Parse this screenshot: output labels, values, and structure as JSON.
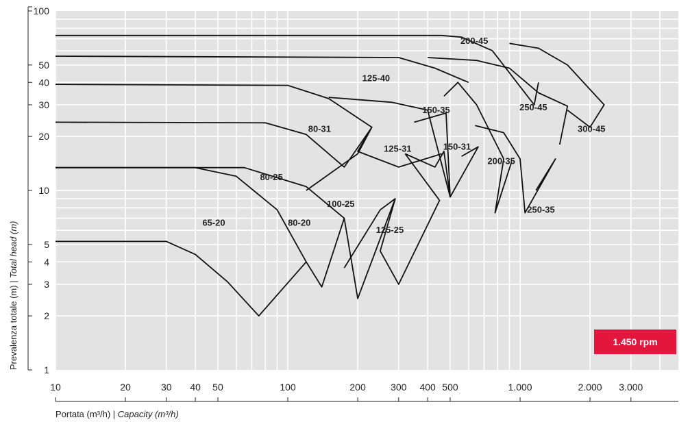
{
  "chart_data": {
    "type": "line",
    "title": "",
    "xlabel": "Portata (m³/h) | ",
    "xlabel_italic": "Capacity (m³/h)",
    "ylabel": "Prevalenza totale (m) | ",
    "ylabel_italic": "Total head (m)",
    "x_scale": "log",
    "y_scale": "log",
    "xlim": [
      10,
      4800
    ],
    "ylim": [
      1,
      100
    ],
    "grid": true,
    "x_ticks": [
      {
        "v": 10,
        "label": "10"
      },
      {
        "v": 20,
        "label": "20"
      },
      {
        "v": 30,
        "label": "30"
      },
      {
        "v": 40,
        "label": "40"
      },
      {
        "v": 50,
        "label": "50"
      },
      {
        "v": 100,
        "label": "100"
      },
      {
        "v": 200,
        "label": "200"
      },
      {
        "v": 300,
        "label": "300"
      },
      {
        "v": 400,
        "label": "400"
      },
      {
        "v": 500,
        "label": "500"
      },
      {
        "v": 1000,
        "label": "1.000"
      },
      {
        "v": 2000,
        "label": "2.000"
      },
      {
        "v": 3000,
        "label": "3.000"
      }
    ],
    "y_ticks": [
      {
        "v": 1,
        "label": "1"
      },
      {
        "v": 2,
        "label": "2"
      },
      {
        "v": 3,
        "label": "3"
      },
      {
        "v": 4,
        "label": "4"
      },
      {
        "v": 5,
        "label": "5"
      },
      {
        "v": 10,
        "label": "10"
      },
      {
        "v": 20,
        "label": "20"
      },
      {
        "v": 30,
        "label": "30"
      },
      {
        "v": 40,
        "label": "40"
      },
      {
        "v": 50,
        "label": "50"
      },
      {
        "v": 100,
        "label": "100"
      }
    ],
    "speed_badge": "1.450 rpm",
    "badge_color": "#e3173e",
    "curves": [
      {
        "label": "65-20",
        "label_at": [
          48,
          6.6
        ],
        "points": [
          [
            10,
            5.2
          ],
          [
            30,
            5.2
          ],
          [
            40,
            4.4
          ],
          [
            55,
            3.1
          ],
          [
            75,
            2.0
          ],
          [
            120,
            4.0
          ]
        ]
      },
      {
        "label": "80-20",
        "label_at": [
          112,
          6.6
        ],
        "points": [
          [
            10,
            13.4
          ],
          [
            40,
            13.4
          ],
          [
            60,
            12.0
          ],
          [
            90,
            7.8
          ],
          [
            120,
            4.0
          ],
          [
            140,
            2.9
          ],
          [
            175,
            7.0
          ]
        ]
      },
      {
        "label": "80-25",
        "label_at": [
          85,
          11.8
        ],
        "points": [
          [
            10,
            24.0
          ],
          [
            80,
            23.8
          ],
          [
            120,
            20.5
          ],
          [
            175,
            13.5
          ],
          [
            230,
            22.5
          ]
        ]
      },
      {
        "label": "80-31",
        "label_at": [
          137,
          22.0
        ],
        "points": [
          [
            10,
            39.0
          ],
          [
            100,
            38.5
          ],
          [
            150,
            32.5
          ],
          [
            230,
            22.5
          ]
        ]
      },
      {
        "label": "100-25",
        "label_at": [
          169,
          8.4
        ],
        "points": [
          [
            10,
            13.4
          ],
          [
            65,
            13.4
          ],
          [
            120,
            10.5
          ],
          [
            175,
            7.0
          ],
          [
            200,
            2.5
          ],
          [
            290,
            9.0
          ]
        ]
      },
      {
        "label": "125-25",
        "label_at": [
          275,
          6.0
        ],
        "points": [
          [
            175,
            3.7
          ],
          [
            250,
            7.8
          ],
          [
            290,
            9.0
          ],
          [
            250,
            4.6
          ],
          [
            300,
            3.0
          ],
          [
            450,
            8.8
          ],
          [
            320,
            16.0
          ]
        ]
      },
      {
        "label": "125-31",
        "label_at": [
          297,
          17.0
        ],
        "points": [
          [
            120,
            10.0
          ],
          [
            200,
            16.0
          ],
          [
            230,
            22.5
          ],
          [
            200,
            16.5
          ],
          [
            300,
            13.5
          ],
          [
            460,
            16.0
          ]
        ]
      },
      {
        "label": "125-40",
        "label_at": [
          240,
          42.0
        ],
        "points": [
          [
            10,
            56.0
          ],
          [
            300,
            55.0
          ],
          [
            430,
            48.0
          ],
          [
            600,
            40.0
          ]
        ]
      },
      {
        "label": "150-31",
        "label_at": [
          535,
          17.5
        ],
        "points": [
          [
            320,
            16.0
          ],
          [
            430,
            13.5
          ],
          [
            470,
            16.5
          ],
          [
            500,
            9.2
          ],
          [
            660,
            17.5
          ],
          [
            560,
            15.5
          ]
        ]
      },
      {
        "label": "150-35",
        "label_at": [
          435,
          28.0
        ],
        "points": [
          [
            150,
            33.0
          ],
          [
            280,
            31.0
          ],
          [
            400,
            28.0
          ],
          [
            500,
            9.2
          ],
          [
            480,
            27.0
          ],
          [
            350,
            24.0
          ]
        ]
      },
      {
        "label": "200-35",
        "label_at": [
          830,
          14.5
        ],
        "points": [
          [
            470,
            33.5
          ],
          [
            540,
            40.0
          ],
          [
            650,
            30.0
          ],
          [
            850,
            15.0
          ],
          [
            780,
            7.5
          ],
          [
            920,
            14.5
          ]
        ]
      },
      {
        "label": "200-45",
        "label_at": [
          635,
          68.0
        ],
        "points": [
          [
            10,
            73.0
          ],
          [
            460,
            73.0
          ],
          [
            560,
            71.5
          ],
          [
            760,
            60.0
          ],
          [
            1150,
            30.0
          ],
          [
            1200,
            40.0
          ]
        ]
      },
      {
        "label": "250-35",
        "label_at": [
          1230,
          7.8
        ],
        "points": [
          [
            640,
            23.0
          ],
          [
            850,
            21.0
          ],
          [
            1000,
            15.0
          ],
          [
            1050,
            7.5
          ],
          [
            1420,
            15.0
          ],
          [
            1170,
            10.0
          ]
        ]
      },
      {
        "label": "250-45",
        "label_at": [
          1140,
          29.0
        ],
        "points": [
          [
            400,
            55.0
          ],
          [
            650,
            53.0
          ],
          [
            900,
            48.0
          ],
          [
            1200,
            35.0
          ],
          [
            1600,
            29.5
          ],
          [
            1480,
            18.0
          ]
        ]
      },
      {
        "label": "300-45",
        "label_at": [
          2030,
          22.0
        ],
        "points": [
          [
            900,
            66.0
          ],
          [
            1200,
            62.0
          ],
          [
            1600,
            50.0
          ],
          [
            2300,
            30.0
          ],
          [
            2000,
            22.5
          ],
          [
            1600,
            28.0
          ]
        ]
      }
    ]
  }
}
